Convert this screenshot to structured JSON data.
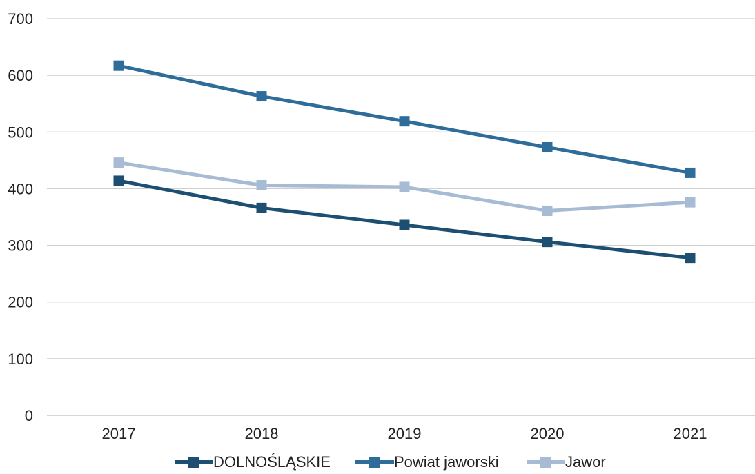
{
  "chart_data": {
    "type": "line",
    "title": "",
    "xlabel": "",
    "ylabel": "",
    "categories": [
      "2017",
      "2018",
      "2019",
      "2020",
      "2021"
    ],
    "ylim": [
      0,
      700
    ],
    "yticks": [
      "0",
      "100",
      "200",
      "300",
      "400",
      "500",
      "600",
      "700"
    ],
    "grid": true,
    "legend_position": "bottom",
    "series": [
      {
        "name": "DOLNOŚLĄSKIE",
        "values": [
          414,
          366,
          336,
          306,
          278
        ],
        "color": "#1c4f72",
        "marker": "square"
      },
      {
        "name": "Powiat jaworski",
        "values": [
          617,
          563,
          519,
          473,
          428
        ],
        "color": "#2e6c99",
        "marker": "square"
      },
      {
        "name": "Jawor",
        "values": [
          446,
          406,
          403,
          361,
          376
        ],
        "color": "#a8bbd4",
        "marker": "square"
      }
    ]
  }
}
